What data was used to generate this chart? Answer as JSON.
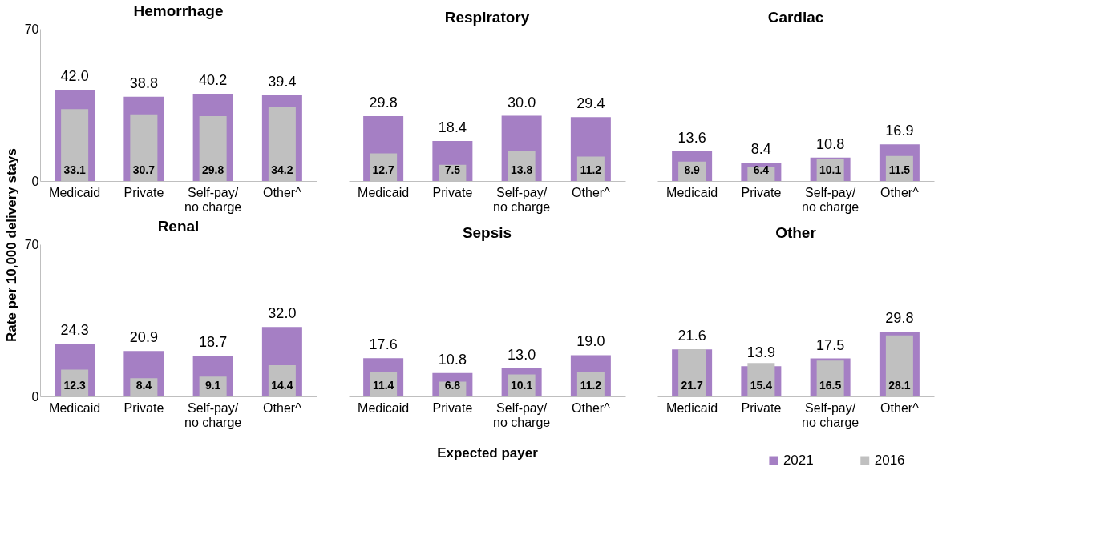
{
  "chart_data": [
    {
      "type": "bar",
      "title": "Hemorrhage",
      "legend": "bottom right",
      "ylabel": "Rate per 10,000 delivery stays",
      "categories": [
        "Medicaid",
        "Private",
        "Self-pay/\nno charge",
        "Other^"
      ],
      "ylim": [
        0,
        70
      ],
      "yticks": [
        0,
        70
      ],
      "series": [
        {
          "name": "2021",
          "color": "#a57fc4",
          "values": [
            42.0,
            38.8,
            40.2,
            39.4
          ],
          "value_labels": [
            "42.0",
            "38.8",
            "40.2",
            "39.4"
          ]
        },
        {
          "name": "2016",
          "color": "#c0c0c0",
          "values": [
            33.1,
            30.7,
            29.8,
            34.2
          ],
          "value_labels": [
            "33.1",
            "30.7",
            "29.8",
            "34.2"
          ]
        }
      ]
    },
    {
      "type": "bar",
      "title": "Respiratory",
      "categories": [
        "Medicaid",
        "Private",
        "Self-pay/\nno charge",
        "Other^"
      ],
      "ylim": [
        0,
        70
      ],
      "tick_labels": "x",
      "series": [
        {
          "name": "2021",
          "color": "#a57fc4",
          "values": [
            29.8,
            18.4,
            30.0,
            29.4
          ],
          "value_labels": [
            "29.8",
            "18.4",
            "30.0",
            "29.4"
          ]
        },
        {
          "name": "2016",
          "color": "#c0c0c0",
          "values": [
            12.7,
            7.5,
            13.8,
            11.2
          ],
          "value_labels": [
            "12.7",
            "7.5",
            "13.8",
            "11.2"
          ]
        }
      ]
    },
    {
      "type": "bar",
      "title": "Cardiac",
      "categories": [
        "Medicaid",
        "Private",
        "Self-pay/\nno charge",
        "Other^"
      ],
      "ylim": [
        0,
        70
      ],
      "tick_labels": "x",
      "series": [
        {
          "name": "2021",
          "color": "#a57fc4",
          "values": [
            13.6,
            8.4,
            10.8,
            16.9
          ],
          "value_labels": [
            "13.6",
            "8.4",
            "10.8",
            "16.9"
          ]
        },
        {
          "name": "2016",
          "color": "#c0c0c0",
          "values": [
            8.9,
            6.4,
            10.1,
            11.5
          ],
          "value_labels": [
            "8.9",
            "6.4",
            "10.1",
            "11.5"
          ]
        }
      ]
    },
    {
      "type": "bar",
      "title": "Renal",
      "categories": [
        "Medicaid",
        "Private",
        "Self-pay/\nno charge",
        "Other^"
      ],
      "ylim": [
        0,
        70
      ],
      "yticks": [
        0,
        70
      ],
      "series": [
        {
          "name": "2021",
          "color": "#a57fc4",
          "values": [
            24.3,
            20.9,
            18.7,
            32.0
          ],
          "value_labels": [
            "24.3",
            "20.9",
            "18.7",
            "32.0"
          ]
        },
        {
          "name": "2016",
          "color": "#c0c0c0",
          "values": [
            12.3,
            8.4,
            9.1,
            14.4
          ],
          "value_labels": [
            "12.3",
            "8.4",
            "9.1",
            "14.4"
          ]
        }
      ]
    },
    {
      "type": "bar",
      "title": "Sepsis",
      "xlabel": "Expected payer",
      "categories": [
        "Medicaid",
        "Private",
        "Self-pay/\nno charge",
        "Other^"
      ],
      "ylim": [
        0,
        70
      ],
      "tick_labels": "x",
      "series": [
        {
          "name": "2021",
          "color": "#a57fc4",
          "values": [
            17.6,
            10.8,
            13.0,
            19.0
          ],
          "value_labels": [
            "17.6",
            "10.8",
            "13.0",
            "19.0"
          ]
        },
        {
          "name": "2016",
          "color": "#c0c0c0",
          "values": [
            11.4,
            6.8,
            10.1,
            11.2
          ],
          "value_labels": [
            "11.4",
            "6.8",
            "10.1",
            "11.2"
          ]
        }
      ]
    },
    {
      "type": "bar",
      "title": "Other",
      "categories": [
        "Medicaid",
        "Private",
        "Self-pay/\nno charge",
        "Other^"
      ],
      "ylim": [
        0,
        70
      ],
      "tick_labels": "x",
      "series": [
        {
          "name": "2021",
          "color": "#a57fc4",
          "values": [
            21.6,
            13.9,
            17.5,
            29.8
          ],
          "value_labels": [
            "21.6",
            "13.9",
            "17.5",
            "29.8"
          ]
        },
        {
          "name": "2016",
          "color": "#c0c0c0",
          "values": [
            21.7,
            15.4,
            16.5,
            28.1
          ],
          "value_labels": [
            "21.7",
            "15.4",
            "16.5",
            "28.1"
          ]
        }
      ]
    }
  ]
}
